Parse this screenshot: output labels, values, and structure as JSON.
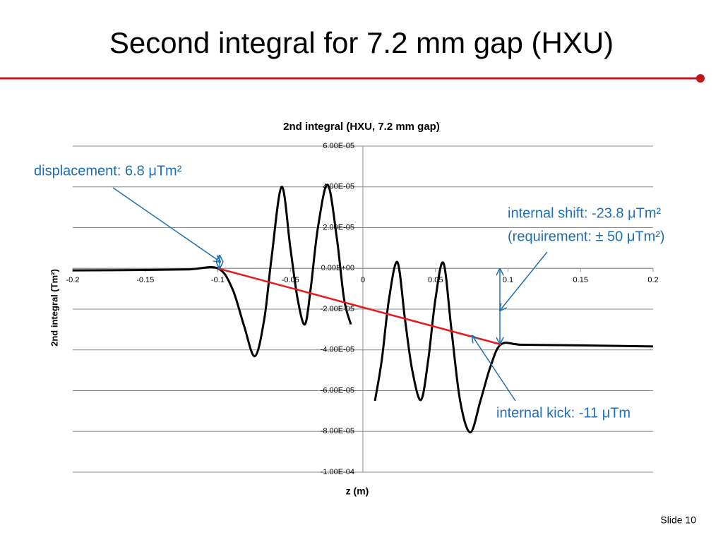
{
  "slide": {
    "title": "Second integral for 7.2 mm gap (HXU)",
    "footer": "Slide 10"
  },
  "chart_data": {
    "type": "line",
    "title": "2nd integral (HXU, 7.2 mm gap)",
    "x_label": "z (m)",
    "y_label": "2nd integral (Tm²)",
    "xlim": [
      -0.2,
      0.2
    ],
    "xticks": [
      -0.2,
      -0.15,
      -0.1,
      -0.05,
      0,
      0.05,
      0.1,
      0.15,
      0.2
    ],
    "ylim": [
      -0.0001,
      6e-05
    ],
    "yticks": [
      {
        "value": 6e-05,
        "label": "6.00E-05"
      },
      {
        "value": 4e-05,
        "label": "4.00E-05"
      },
      {
        "value": 2e-05,
        "label": "2.00E-05"
      },
      {
        "value": 0,
        "label": "0.00E+00"
      },
      {
        "value": -2e-05,
        "label": "-2.00E-05"
      },
      {
        "value": -4e-05,
        "label": "-4.00E-05"
      },
      {
        "value": -6e-05,
        "label": "-6.00E-05"
      },
      {
        "value": -8e-05,
        "label": "-8.00E-05"
      },
      {
        "value": -0.0001,
        "label": "-1.00E-04"
      }
    ],
    "grid": true,
    "series": [
      {
        "color": "#000000",
        "x": [
          -0.2,
          -0.15,
          -0.12,
          -0.1,
          -0.09,
          -0.082,
          -0.0745,
          -0.068,
          -0.063,
          -0.056,
          -0.05,
          -0.045,
          -0.04,
          -0.036,
          -0.031,
          -0.0243,
          -0.018,
          -0.013,
          -0.0083,
          null,
          0.0083,
          0.013,
          0.018,
          0.0238,
          0.029,
          0.034,
          0.04,
          0.045,
          0.05,
          0.0555,
          0.061,
          0.067,
          0.074,
          0.081,
          0.088,
          0.0954,
          0.11,
          0.15,
          0.2
        ],
        "values": [
          -1e-06,
          -8e-07,
          -5e-07,
          0,
          -1e-05,
          -2.8e-05,
          -4.31e-05,
          -2.5e-05,
          5e-06,
          4e-05,
          1e-05,
          -1.5e-05,
          -2.75e-05,
          -1e-05,
          2e-05,
          4.1e-05,
          1.5e-05,
          -1.5e-05,
          -2.75e-05,
          null,
          -6.5e-05,
          -4.5e-05,
          -1.5e-05,
          3e-06,
          -2.5e-05,
          -5e-05,
          -6.46e-05,
          -4.5e-05,
          -1.5e-05,
          2.6e-06,
          -3e-05,
          -6.5e-05,
          -8.05e-05,
          -6.5e-05,
          -4.8e-05,
          -3.72e-05,
          -3.75e-05,
          -3.78e-05,
          -3.83e-05
        ]
      },
      {
        "color": "#e8191a",
        "x": [
          -0.1,
          0.0954
        ],
        "values": [
          0,
          -3.74e-05
        ]
      }
    ],
    "annotations": [
      "displacement: 6.8 μTm²",
      "internal shift: -23.8 μTm²",
      "(requirement: ± 50 μTm²)",
      "internal kick: -11 μTm"
    ]
  }
}
